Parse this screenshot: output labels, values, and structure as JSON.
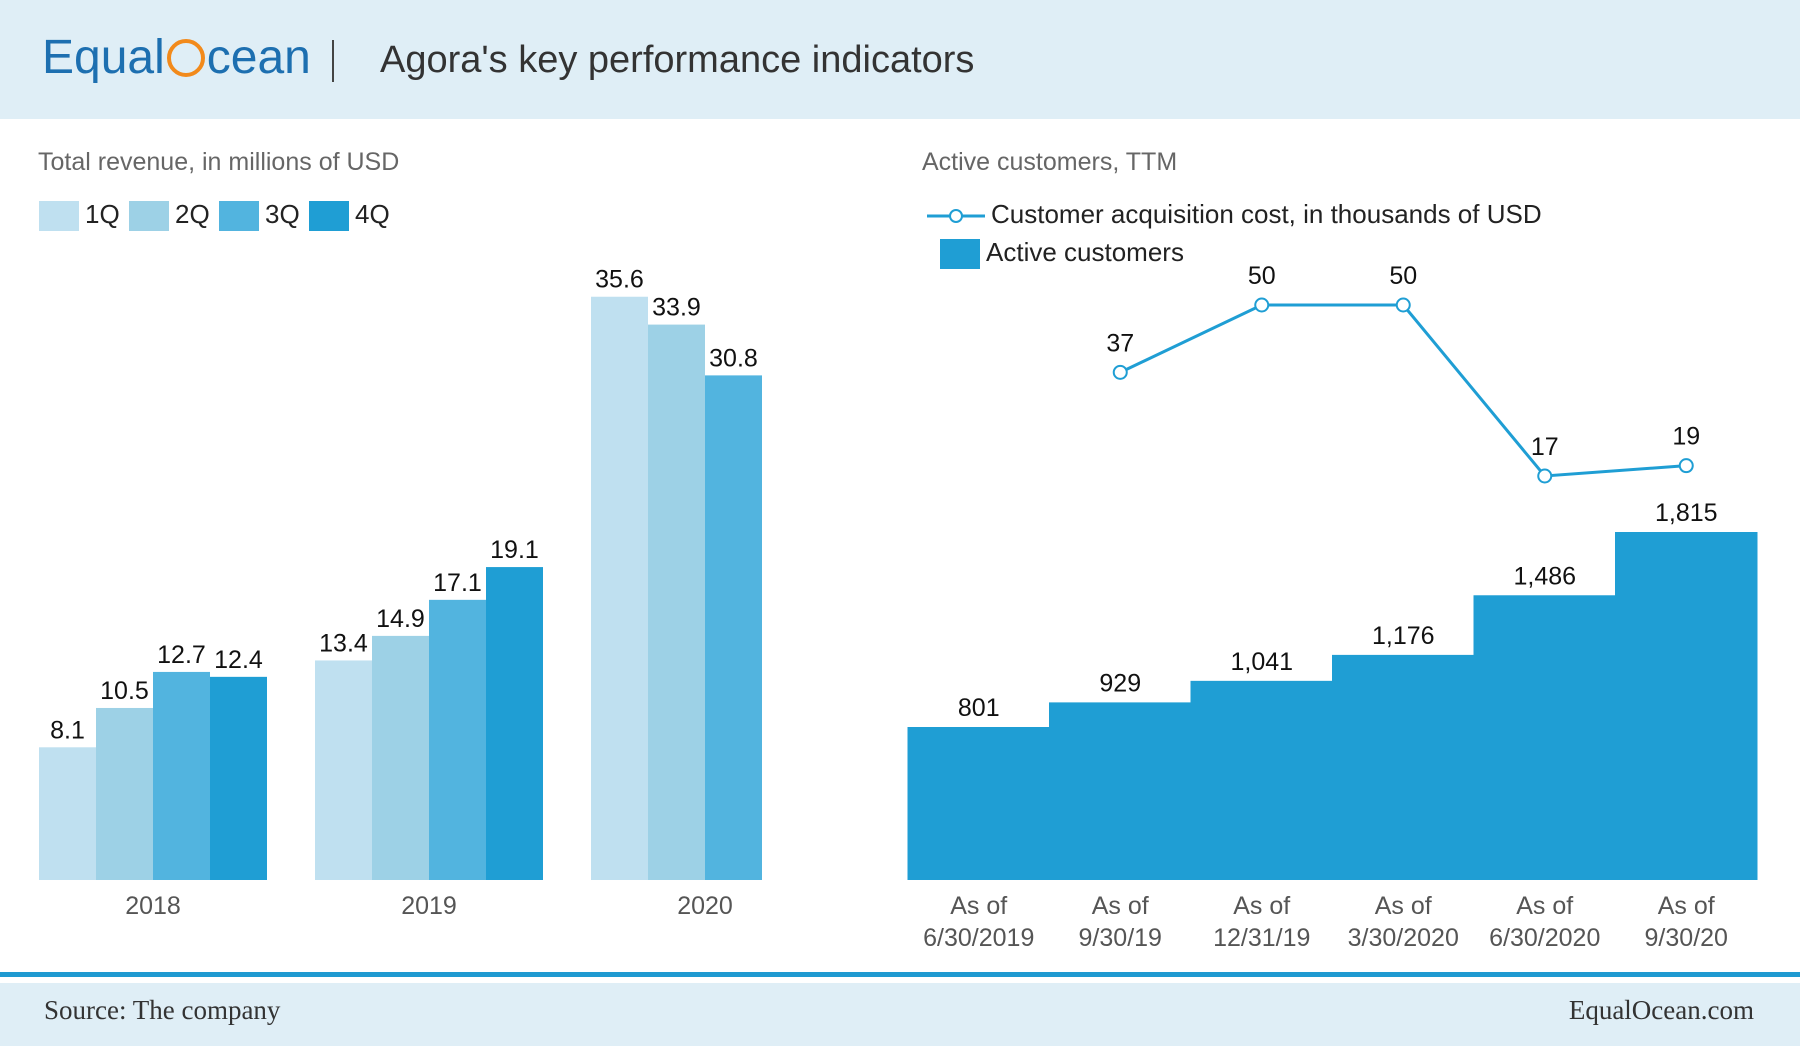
{
  "header": {
    "logo_left": "Equal",
    "logo_right": "cean",
    "title": "Agora's key performance indicators"
  },
  "footer": {
    "source": "Source: The company",
    "site": "EqualOcean.com"
  },
  "colors": {
    "q1": "#bfe0f0",
    "q2": "#9dd1e6",
    "q3": "#52b4df",
    "q4": "#1f9ed4",
    "active": "#1f9ed4",
    "line": "#1f9ed4"
  },
  "chart_data": [
    {
      "type": "bar",
      "title": "Total revenue, in millions of USD",
      "categories": [
        "2018",
        "2019",
        "2020"
      ],
      "series": [
        {
          "name": "1Q",
          "values": [
            8.1,
            13.4,
            35.6
          ]
        },
        {
          "name": "2Q",
          "values": [
            10.5,
            14.9,
            33.9
          ]
        },
        {
          "name": "3Q",
          "values": [
            12.7,
            17.1,
            30.8
          ]
        },
        {
          "name": "4Q",
          "values": [
            12.4,
            19.1,
            null
          ]
        }
      ],
      "ylim": [
        0,
        36.5
      ],
      "grid": false,
      "legend": "top-left"
    },
    {
      "type": "area",
      "title": "Active customers, TTM",
      "categories": [
        "As of\n6/30/2019",
        "As of\n9/30/19",
        "As of\n12/31/19",
        "As of\n3/30/2020",
        "As of\n6/30/2020",
        "As of\n9/30/20"
      ],
      "series": [
        {
          "name": "Active customers",
          "kind": "step-area",
          "values": [
            801,
            929,
            1041,
            1176,
            1486,
            1815
          ],
          "labels": [
            "801",
            "929",
            "1,041",
            "1,176",
            "1,486",
            "1,815"
          ]
        },
        {
          "name": "Customer acquisition cost, in thousands of USD",
          "kind": "line",
          "values": [
            null,
            37,
            50,
            50,
            17,
            19
          ],
          "labels": [
            "",
            "37",
            "50",
            "50",
            "17",
            "19"
          ]
        }
      ],
      "grid": false,
      "legend": "top-left"
    }
  ]
}
